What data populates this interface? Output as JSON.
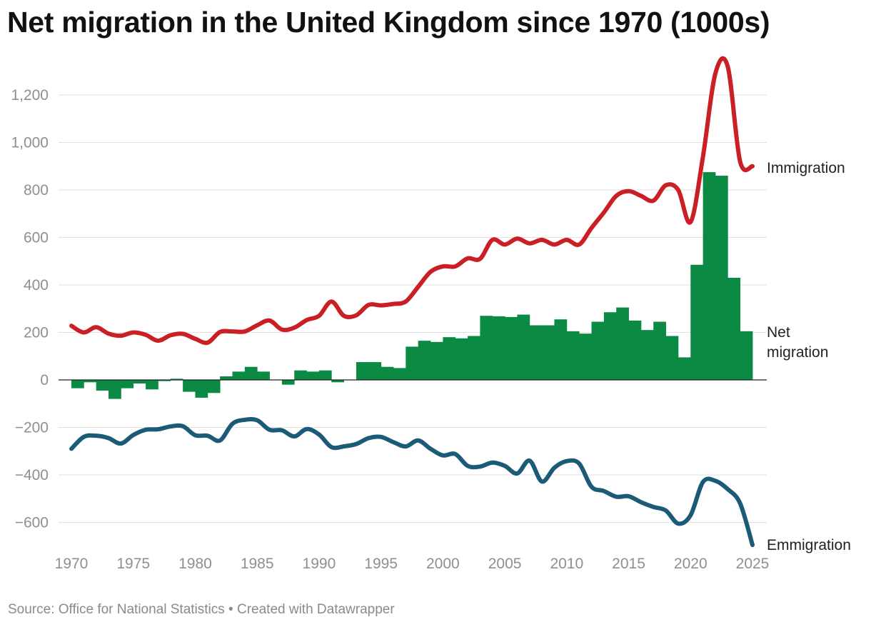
{
  "title": "Net migration in the United Kingdom since 1970 (1000s)",
  "source_text": "Source: Office for National Statistics • Created with Datawrapper",
  "colors": {
    "immigration": "#c91f25",
    "emigration": "#1b5b77",
    "net_migration": "#0a8a43",
    "gridline": "#e1e1e1",
    "zero_line": "#222222",
    "tick_text": "#8f8f8f"
  },
  "chart_data": {
    "type": "bar",
    "title": "Net migration in the United Kingdom since 1970 (1000s)",
    "xlabel": "",
    "ylabel": "",
    "xlim": [
      1970,
      2025
    ],
    "ylim": [
      -700,
      1350
    ],
    "grid": true,
    "x_ticks": [
      1970,
      1975,
      1980,
      1985,
      1990,
      1995,
      2000,
      2005,
      2010,
      2015,
      2020,
      2025
    ],
    "x_tick_labels": [
      "1970",
      "1975",
      "1980",
      "1985",
      "1990",
      "1995",
      "2000",
      "2005",
      "2010",
      "2015",
      "2020",
      "2025"
    ],
    "y_ticks": [
      -600,
      -400,
      -200,
      0,
      200,
      400,
      600,
      800,
      1000,
      1200
    ],
    "y_tick_labels": [
      "−600",
      "−400",
      "−200",
      "0",
      "200",
      "400",
      "600",
      "800",
      "1,000",
      "1,200"
    ],
    "series": [
      {
        "name": "Net migration",
        "label": [
          "Net",
          "migration"
        ],
        "type": "bar",
        "x": [
          1971,
          1972,
          1973,
          1974,
          1975,
          1976,
          1977,
          1978,
          1979,
          1980,
          1981,
          1982,
          1983,
          1984,
          1985,
          1986,
          1987,
          1988,
          1989,
          1990,
          1991,
          1992,
          1993,
          1994,
          1995,
          1996,
          1997,
          1998,
          1999,
          2000,
          2001,
          2002,
          2003,
          2004,
          2005,
          2006,
          2007,
          2008,
          2009,
          2010,
          2011,
          2012,
          2013,
          2014,
          2015,
          2016,
          2017,
          2018,
          2019,
          2020,
          2021,
          2022,
          2023,
          2024,
          2025
        ],
        "values": [
          -35,
          -10,
          -45,
          -80,
          -35,
          -15,
          -40,
          -5,
          5,
          -50,
          -75,
          -55,
          15,
          35,
          55,
          35,
          0,
          -20,
          40,
          35,
          40,
          -10,
          0,
          75,
          75,
          55,
          50,
          140,
          165,
          160,
          180,
          175,
          185,
          270,
          268,
          265,
          275,
          230,
          230,
          255,
          205,
          195,
          245,
          285,
          305,
          250,
          210,
          245,
          185,
          95,
          485,
          875,
          860,
          430,
          205
        ]
      },
      {
        "name": "Immigration",
        "label": [
          "Immigration"
        ],
        "type": "line",
        "x": [
          1970,
          1971,
          1972,
          1973,
          1974,
          1975,
          1976,
          1977,
          1978,
          1979,
          1980,
          1981,
          1982,
          1983,
          1984,
          1985,
          1986,
          1987,
          1988,
          1989,
          1990,
          1991,
          1992,
          1993,
          1994,
          1995,
          1996,
          1997,
          1998,
          1999,
          2000,
          2001,
          2002,
          2003,
          2004,
          2005,
          2006,
          2007,
          2008,
          2009,
          2010,
          2011,
          2012,
          2013,
          2014,
          2015,
          2016,
          2017,
          2018,
          2019,
          2020,
          2021,
          2022,
          2023,
          2024,
          2025
        ],
        "values": [
          228,
          200,
          222,
          195,
          186,
          200,
          190,
          165,
          188,
          194,
          173,
          157,
          202,
          204,
          204,
          230,
          250,
          212,
          220,
          252,
          270,
          330,
          270,
          272,
          316,
          314,
          320,
          330,
          392,
          455,
          478,
          478,
          512,
          510,
          590,
          570,
          595,
          575,
          590,
          570,
          590,
          570,
          640,
          705,
          775,
          795,
          775,
          755,
          820,
          800,
          665,
          940,
          1290,
          1320,
          920,
          900
        ]
      },
      {
        "name": "Emigration",
        "label": [
          "Emmigration"
        ],
        "type": "line",
        "x": [
          1970,
          1971,
          1972,
          1973,
          1974,
          1975,
          1976,
          1977,
          1978,
          1979,
          1980,
          1981,
          1982,
          1983,
          1984,
          1985,
          1986,
          1987,
          1988,
          1989,
          1990,
          1991,
          1992,
          1993,
          1994,
          1995,
          1996,
          1997,
          1998,
          1999,
          2000,
          2001,
          2002,
          2003,
          2004,
          2005,
          2006,
          2007,
          2008,
          2009,
          2010,
          2011,
          2012,
          2013,
          2014,
          2015,
          2016,
          2017,
          2018,
          2019,
          2020,
          2021,
          2022,
          2023,
          2024,
          2025
        ],
        "values": [
          -290,
          -240,
          -235,
          -245,
          -268,
          -232,
          -210,
          -208,
          -196,
          -195,
          -233,
          -235,
          -255,
          -185,
          -168,
          -170,
          -210,
          -212,
          -238,
          -207,
          -230,
          -283,
          -280,
          -270,
          -245,
          -240,
          -262,
          -280,
          -255,
          -290,
          -318,
          -312,
          -362,
          -365,
          -348,
          -362,
          -394,
          -340,
          -428,
          -370,
          -342,
          -352,
          -450,
          -468,
          -492,
          -490,
          -515,
          -535,
          -550,
          -605,
          -570,
          -430,
          -425,
          -460,
          -520,
          -695
        ]
      }
    ]
  }
}
